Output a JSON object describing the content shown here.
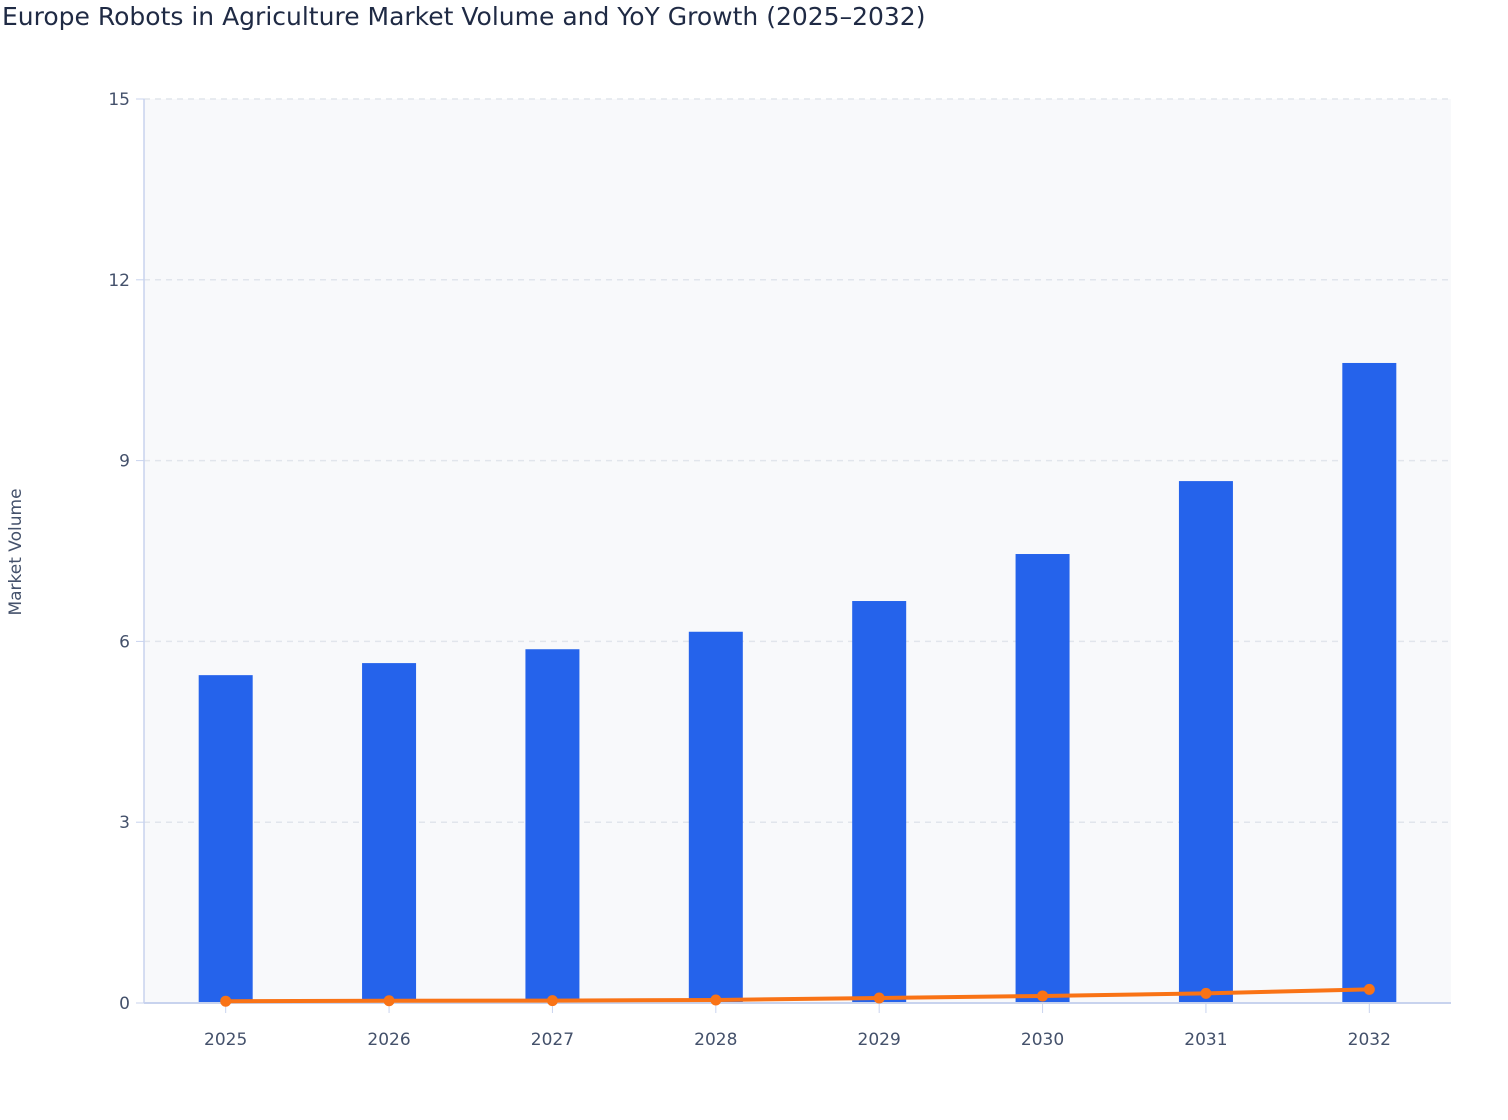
{
  "chart_data": {
    "type": "bar+line",
    "title": "Europe Robots in Agriculture Market Volume and YoY Growth (2025–2032)",
    "xlabel": "",
    "ylabel": "Market Volume",
    "categories": [
      "2025",
      "2026",
      "2027",
      "2028",
      "2029",
      "2030",
      "2031",
      "2032"
    ],
    "ylim": [
      0,
      15
    ],
    "yticks": [
      0,
      3,
      6,
      9,
      12,
      15
    ],
    "grid": true,
    "series": [
      {
        "type": "bar",
        "color": "#2563eb",
        "values": [
          5.44,
          5.64,
          5.87,
          6.16,
          6.67,
          7.45,
          8.66,
          10.62
        ]
      },
      {
        "type": "line",
        "color": "#f97316",
        "values": [
          0.03,
          0.037,
          0.04,
          0.05,
          0.083,
          0.117,
          0.16,
          0.226
        ]
      }
    ]
  }
}
